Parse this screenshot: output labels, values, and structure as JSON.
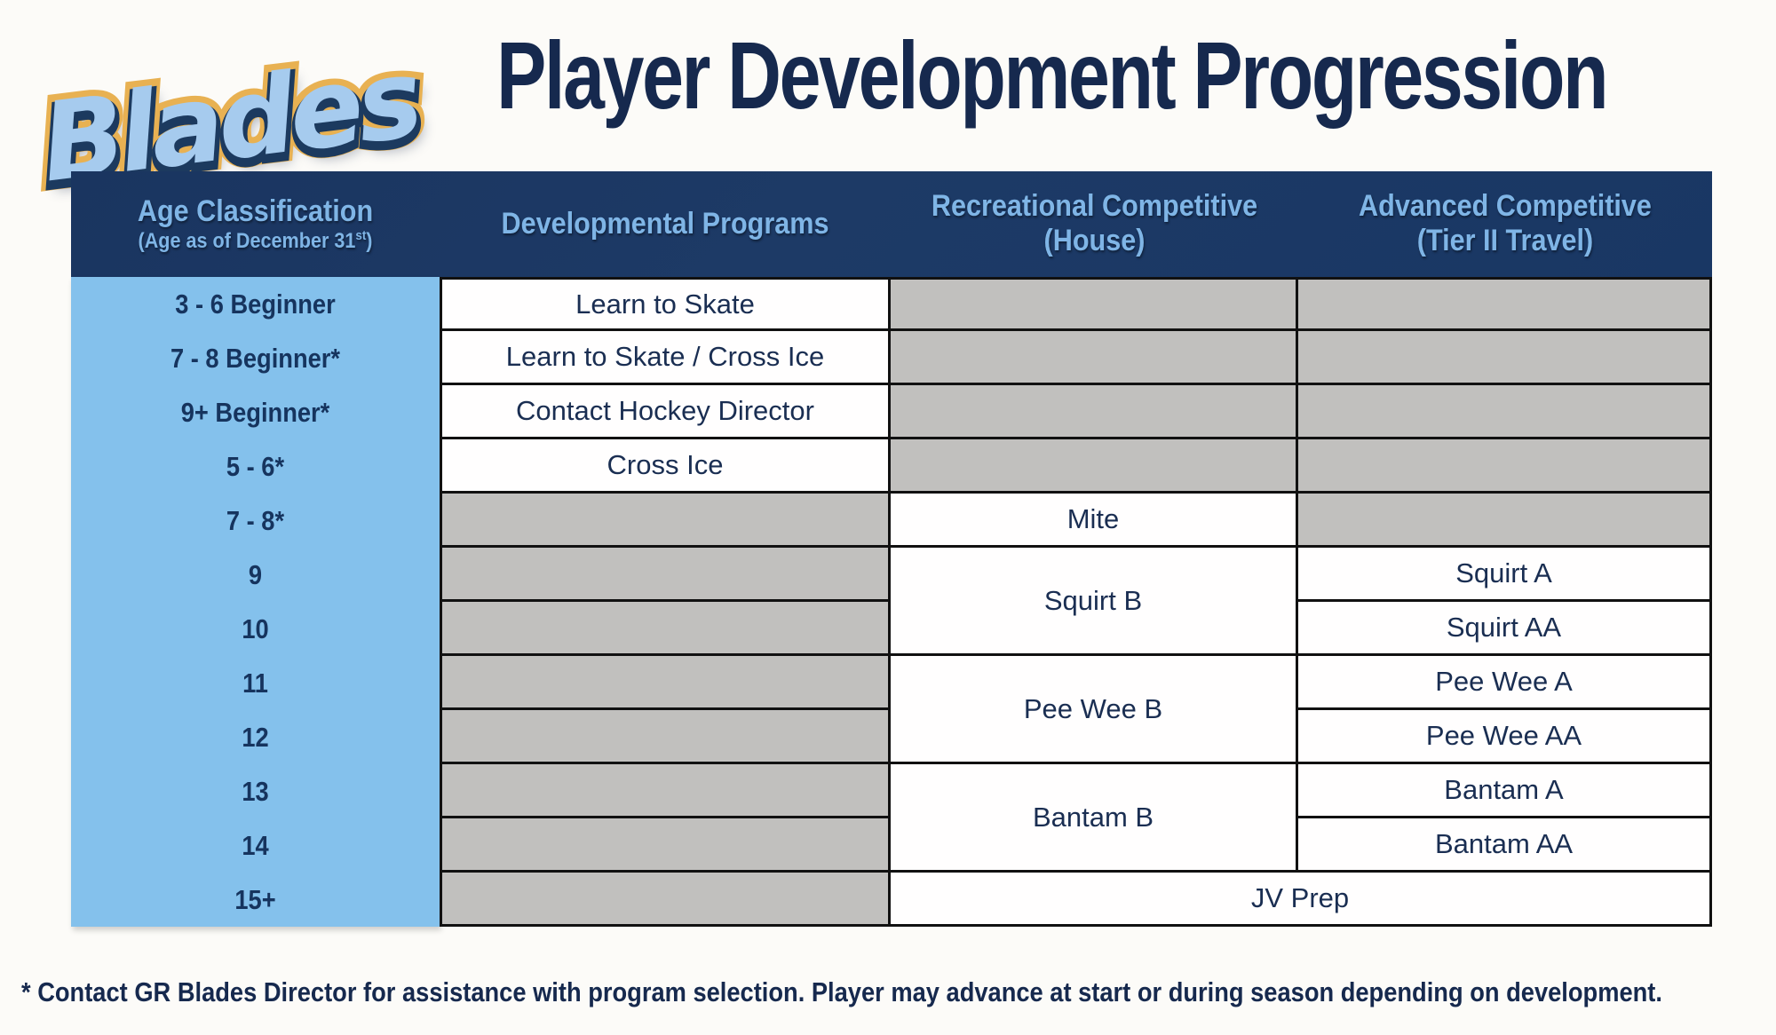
{
  "logo": {
    "text": "Blades"
  },
  "title": "Player Development Progression",
  "table": {
    "headers": {
      "age": {
        "title": "Age Classification",
        "sub_pre": "(Age as of December 31",
        "sub_sup": "st",
        "sub_post": ")"
      },
      "dev": {
        "title": "Developmental Programs"
      },
      "rec": {
        "title": "Recreational Competitive",
        "sub": "(House)"
      },
      "adv": {
        "title": "Advanced Competitive",
        "sub": "(Tier II Travel)"
      }
    },
    "ages": [
      "3 - 6 Beginner",
      "7 - 8 Beginner*",
      "9+ Beginner*",
      "5 - 6*",
      "7 - 8*",
      "9",
      "10",
      "11",
      "12",
      "13",
      "14",
      "15+"
    ],
    "programs": {
      "dev0": "Learn to Skate",
      "dev1": "Learn to Skate / Cross Ice",
      "dev2": "Contact Hockey Director",
      "dev3": "Cross Ice",
      "rec4": "Mite",
      "rec5": "Squirt B",
      "rec7": "Pee Wee B",
      "rec9": "Bantam B",
      "adv5": "Squirt A",
      "adv6": "Squirt AA",
      "adv7": "Pee Wee A",
      "adv8": "Pee Wee AA",
      "adv9": "Bantam A",
      "adv10": "Bantam AA",
      "jv11": "JV Prep"
    }
  },
  "footnote": "* Contact GR Blades Director for assistance with program selection. Player may advance at start or during season depending on development.",
  "colors": {
    "header_bg": "#1d3a66",
    "header_text": "#7fb5e6",
    "age_column_bg": "#84c1ec",
    "empty_cell_bg": "#c1c0be",
    "cell_border": "#111111",
    "navy_text": "#1a2e52",
    "title_text": "#16294e",
    "logo_blue": "#a6cbee",
    "logo_navy": "#1c3a5f",
    "logo_gold": "#e8b152",
    "page_bg": "#fcfbf8"
  }
}
